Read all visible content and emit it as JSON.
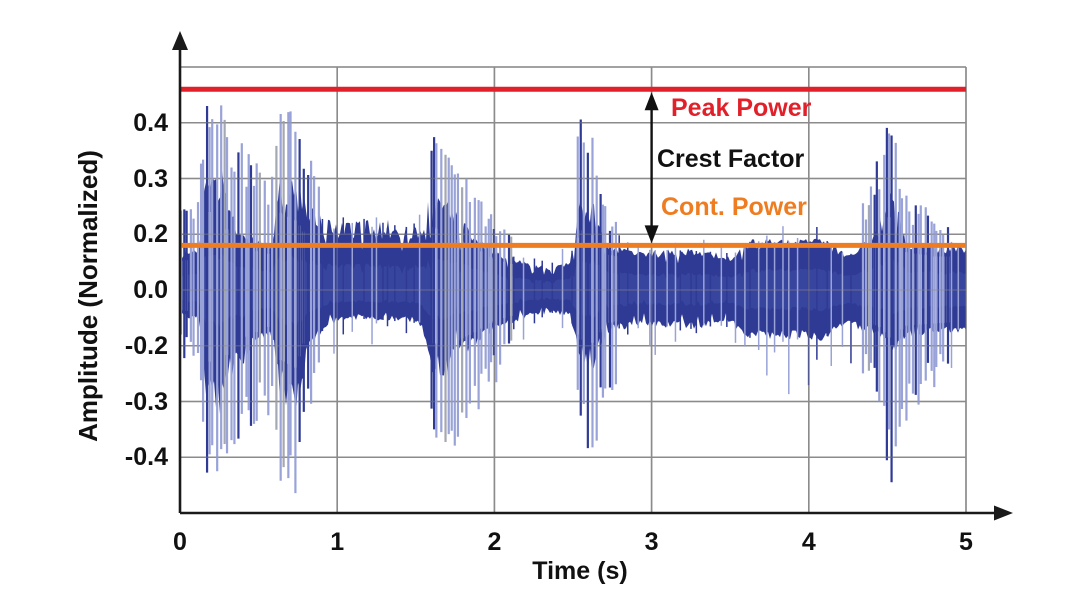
{
  "chart_data": {
    "type": "line",
    "subtype": "audio-waveform-envelope",
    "title": "",
    "xlabel": "Time (s)",
    "ylabel": "Amplitude (Normalized)",
    "xlim": [
      0,
      5
    ],
    "grid": true,
    "x_ticks": [
      "0",
      "1",
      "2",
      "3",
      "4",
      "5"
    ],
    "y_tick_labels": [
      "0.4",
      "0.3",
      "0.2",
      "0.0",
      "-0.2",
      "-0.3",
      "-0.4"
    ],
    "colors": {
      "waveform_core": "#2e3a94",
      "waveform_inner": "#424ea8",
      "spike_light": "#99a3d8",
      "spike_gray": "#a4a8b2",
      "grid": "#8b8b8b",
      "axis": "#1a1a1a"
    },
    "annotations": {
      "peak_power": {
        "label": "Peak Power",
        "level": 0.46,
        "color": "#e1202a"
      },
      "cont_power": {
        "label": "Cont. Power",
        "level": 0.16,
        "color": "#ee7d22"
      },
      "crest_factor": {
        "label": "Crest Factor",
        "color": "#111111",
        "from_level": 0.46,
        "to_level": 0.16,
        "arrow_x": 3.0
      }
    },
    "envelope": [
      {
        "t": 0.0,
        "hi": 0.13,
        "lo": -0.09,
        "phi": 0.27,
        "plo": -0.22
      },
      {
        "t": 0.12,
        "hi": 0.14,
        "lo": -0.1,
        "phi": 0.28,
        "plo": -0.25
      },
      {
        "t": 0.16,
        "hi": 0.3,
        "lo": -0.28,
        "phi": 0.45,
        "plo": -0.45
      },
      {
        "t": 0.26,
        "hi": 0.3,
        "lo": -0.3,
        "phi": 0.46,
        "plo": -0.46
      },
      {
        "t": 0.34,
        "hi": 0.22,
        "lo": -0.24,
        "phi": 0.38,
        "plo": -0.4
      },
      {
        "t": 0.45,
        "hi": 0.18,
        "lo": -0.2,
        "phi": 0.35,
        "plo": -0.36
      },
      {
        "t": 0.58,
        "hi": 0.16,
        "lo": -0.16,
        "phi": 0.3,
        "plo": -0.32
      },
      {
        "t": 0.63,
        "hi": 0.3,
        "lo": -0.28,
        "phi": 0.45,
        "plo": -0.45
      },
      {
        "t": 0.74,
        "hi": 0.28,
        "lo": -0.3,
        "phi": 0.43,
        "plo": -0.47
      },
      {
        "t": 0.82,
        "hi": 0.24,
        "lo": -0.2,
        "phi": 0.34,
        "plo": -0.33
      },
      {
        "t": 0.95,
        "hi": 0.21,
        "lo": -0.12,
        "phi": 0.27,
        "plo": -0.24
      },
      {
        "t": 1.1,
        "hi": 0.21,
        "lo": -0.1,
        "phi": 0.24,
        "plo": -0.2
      },
      {
        "t": 1.52,
        "hi": 0.21,
        "lo": -0.11,
        "phi": 0.23,
        "plo": -0.19
      },
      {
        "t": 1.6,
        "hi": 0.27,
        "lo": -0.24,
        "phi": 0.38,
        "plo": -0.36
      },
      {
        "t": 1.72,
        "hi": 0.24,
        "lo": -0.24,
        "phi": 0.34,
        "plo": -0.4
      },
      {
        "t": 1.85,
        "hi": 0.2,
        "lo": -0.2,
        "phi": 0.3,
        "plo": -0.34
      },
      {
        "t": 2.0,
        "hi": 0.14,
        "lo": -0.14,
        "phi": 0.24,
        "plo": -0.28
      },
      {
        "t": 2.18,
        "hi": 0.1,
        "lo": -0.1,
        "phi": 0.18,
        "plo": -0.2
      },
      {
        "t": 2.35,
        "hi": 0.08,
        "lo": -0.08,
        "phi": 0.14,
        "plo": -0.15
      },
      {
        "t": 2.48,
        "hi": 0.1,
        "lo": -0.09,
        "phi": 0.2,
        "plo": -0.16
      },
      {
        "t": 2.54,
        "hi": 0.26,
        "lo": -0.22,
        "phi": 0.41,
        "plo": -0.36
      },
      {
        "t": 2.62,
        "hi": 0.25,
        "lo": -0.24,
        "phi": 0.38,
        "plo": -0.41
      },
      {
        "t": 2.72,
        "hi": 0.16,
        "lo": -0.15,
        "phi": 0.24,
        "plo": -0.3
      },
      {
        "t": 2.9,
        "hi": 0.13,
        "lo": -0.12,
        "phi": 0.18,
        "plo": -0.22
      },
      {
        "t": 3.25,
        "hi": 0.14,
        "lo": -0.13,
        "phi": 0.19,
        "plo": -0.26
      },
      {
        "t": 3.5,
        "hi": 0.12,
        "lo": -0.12,
        "phi": 0.17,
        "plo": -0.2
      },
      {
        "t": 3.62,
        "hi": 0.17,
        "lo": -0.16,
        "phi": 0.21,
        "plo": -0.28
      },
      {
        "t": 4.1,
        "hi": 0.17,
        "lo": -0.17,
        "phi": 0.22,
        "plo": -0.3
      },
      {
        "t": 4.25,
        "hi": 0.12,
        "lo": -0.12,
        "phi": 0.18,
        "plo": -0.24
      },
      {
        "t": 4.44,
        "hi": 0.2,
        "lo": -0.16,
        "phi": 0.34,
        "plo": -0.3
      },
      {
        "t": 4.52,
        "hi": 0.3,
        "lo": -0.22,
        "phi": 0.42,
        "plo": -0.46
      },
      {
        "t": 4.62,
        "hi": 0.17,
        "lo": -0.16,
        "phi": 0.27,
        "plo": -0.36
      },
      {
        "t": 4.8,
        "hi": 0.15,
        "lo": -0.15,
        "phi": 0.24,
        "plo": -0.28
      },
      {
        "t": 5.0,
        "hi": 0.15,
        "lo": -0.14,
        "phi": 0.22,
        "plo": -0.25
      }
    ]
  }
}
